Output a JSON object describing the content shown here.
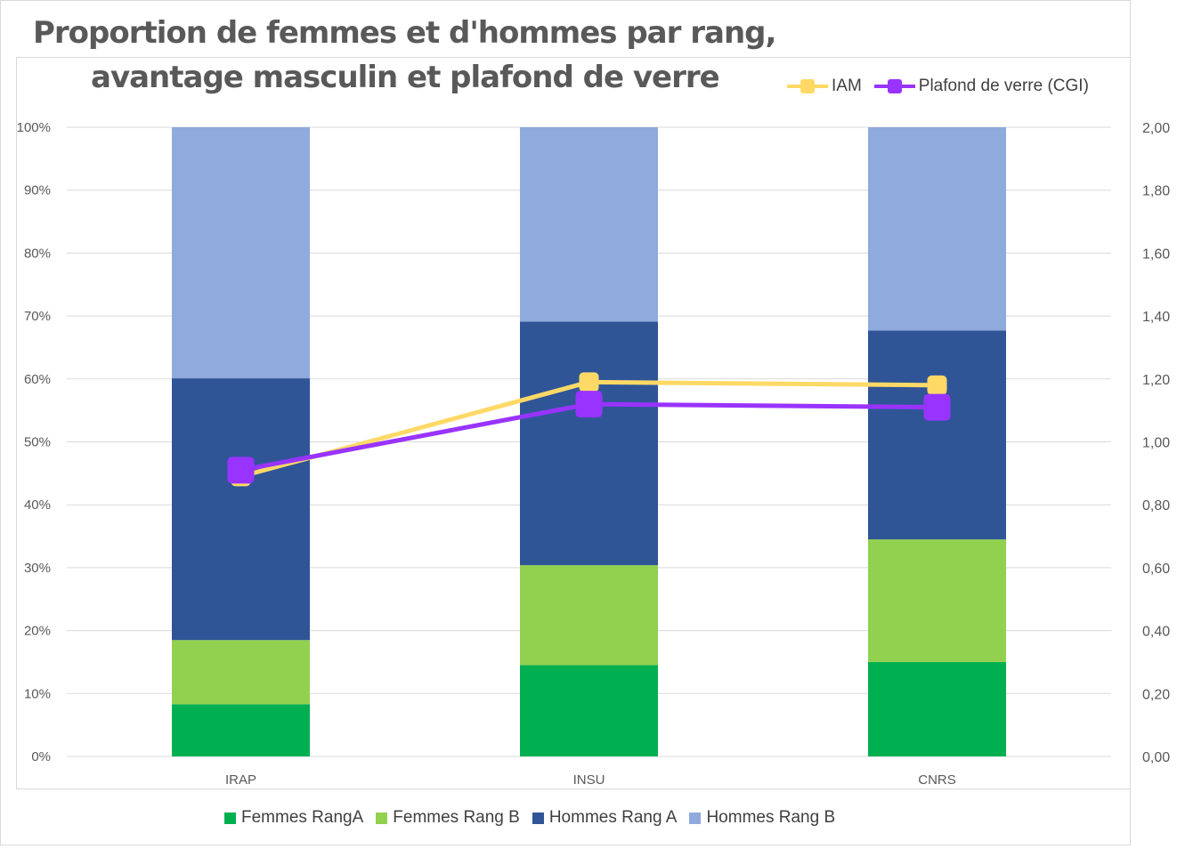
{
  "title": {
    "line1": "Proportion de femmes et d'hommes par rang,",
    "line2": "avantage masculin et plafond de verre"
  },
  "colors": {
    "femmes_rang_a": "#00b050",
    "femmes_rang_b": "#92d050",
    "hommes_rang_a": "#2f5597",
    "hommes_rang_b": "#8faadc",
    "iam": "#ffd966",
    "cgi": "#9933ff"
  },
  "chart_data": {
    "type": "bar",
    "stacked": true,
    "categories": [
      "IRAP",
      "INSU",
      "CNRS"
    ],
    "series": [
      {
        "name": "Femmes RangA",
        "color_key": "femmes_rang_a",
        "values": [
          8.3,
          14.5,
          15.0
        ]
      },
      {
        "name": "Femmes Rang B",
        "color_key": "femmes_rang_b",
        "values": [
          10.2,
          15.9,
          19.5
        ]
      },
      {
        "name": "Hommes Rang A",
        "color_key": "hommes_rang_a",
        "values": [
          41.6,
          38.7,
          33.2
        ]
      },
      {
        "name": "Hommes Rang B",
        "color_key": "hommes_rang_b",
        "values": [
          39.9,
          30.9,
          32.3
        ]
      }
    ],
    "line_series": [
      {
        "name": "IAM",
        "color_key": "iam",
        "axis": "secondary",
        "values": [
          0.89,
          1.19,
          1.18
        ]
      },
      {
        "name": "Plafond de verre (CGI)",
        "color_key": "cgi",
        "axis": "secondary",
        "values": [
          0.91,
          1.12,
          1.11
        ]
      }
    ],
    "y_left": {
      "ticks": [
        "0%",
        "10%",
        "20%",
        "30%",
        "40%",
        "50%",
        "60%",
        "70%",
        "80%",
        "90%",
        "100%"
      ],
      "min": 0,
      "max": 100
    },
    "y_right": {
      "ticks": [
        "0,00",
        "0,20",
        "0,40",
        "0,60",
        "0,80",
        "1,00",
        "1,20",
        "1,40",
        "1,60",
        "1,80",
        "2,00"
      ],
      "min": 0,
      "max": 2
    },
    "grid": true,
    "legend_bar_position": "bottom",
    "legend_line_position": "top-right"
  }
}
